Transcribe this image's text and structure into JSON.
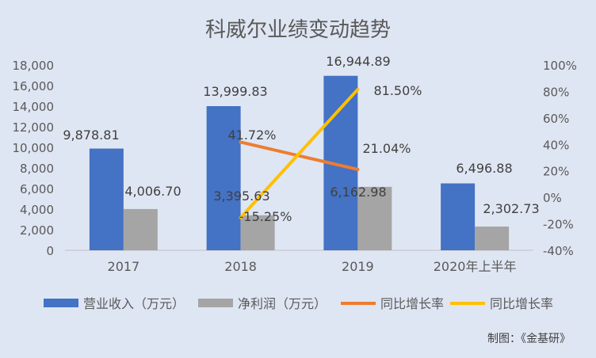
{
  "chart_data": {
    "type": "bar",
    "title": "科威尔业绩变动趋势",
    "categories": [
      "2017",
      "2018",
      "2019",
      "2020年上半年"
    ],
    "left_axis": {
      "min": 0,
      "max": 18000,
      "ticks": [
        "0",
        "2,000",
        "4,000",
        "6,000",
        "8,000",
        "10,000",
        "12,000",
        "14,000",
        "16,000",
        "18,000"
      ]
    },
    "right_axis": {
      "min": -40,
      "max": 100,
      "ticks": [
        "-40%",
        "-20%",
        "0%",
        "20%",
        "40%",
        "60%",
        "80%",
        "100%"
      ]
    },
    "series": [
      {
        "name": "营业收入（万元）",
        "kind": "bar",
        "color": "#4472c4",
        "values": [
          9878.81,
          13999.83,
          16944.89,
          6496.88
        ],
        "labels": [
          "9,878.81",
          "13,999.83",
          "16,944.89",
          "6,496.88"
        ]
      },
      {
        "name": "净利润（万元）",
        "kind": "bar",
        "color": "#a5a5a5",
        "values": [
          4006.7,
          3395.63,
          6162.98,
          2302.73
        ],
        "labels": [
          "4,006.70",
          "3,395.63",
          "6,162.98",
          "2,302.73"
        ]
      },
      {
        "name": "同比增长率",
        "kind": "line",
        "axis": "right",
        "color": "#ed7d31",
        "values": [
          null,
          41.72,
          21.04,
          null
        ],
        "labels": [
          null,
          "41.72%",
          "21.04%",
          null
        ]
      },
      {
        "name": "同比增长率",
        "kind": "line",
        "axis": "right",
        "color": "#ffc000",
        "values": [
          null,
          -15.25,
          81.5,
          null
        ],
        "labels": [
          null,
          "-15.25%",
          "81.50%",
          null
        ]
      }
    ],
    "legend_position": "bottom",
    "grid": false
  },
  "source_note": "制图：《金基研》"
}
